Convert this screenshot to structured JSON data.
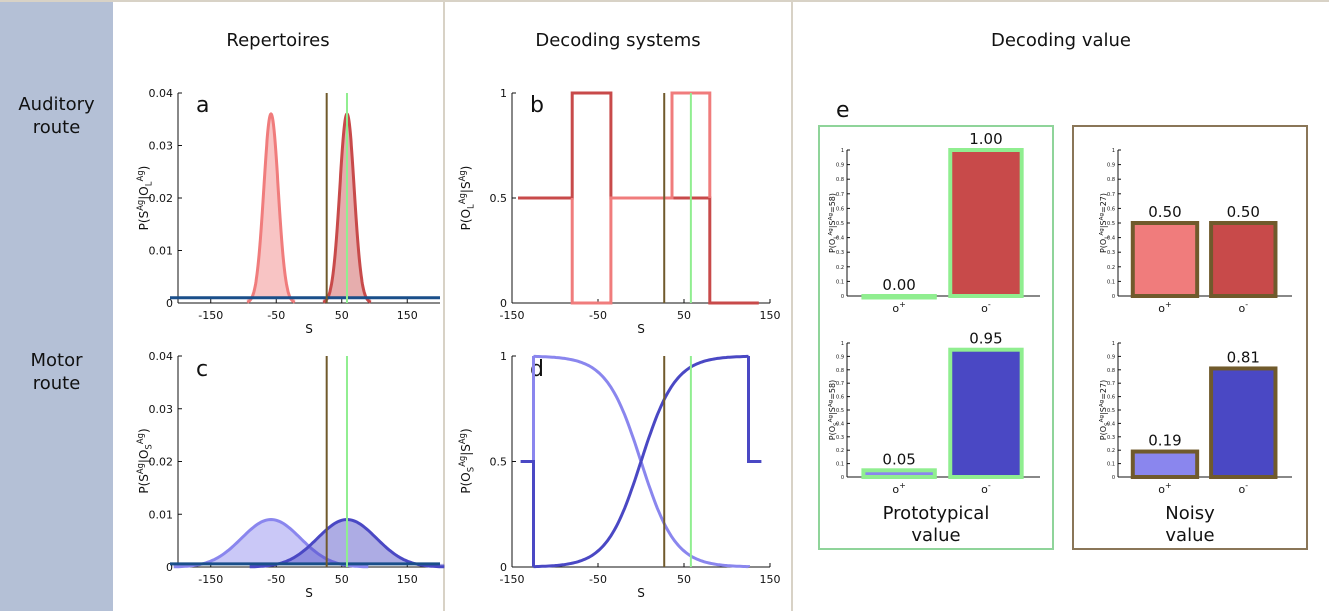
{
  "row_labels": {
    "auditory": [
      "Auditory",
      "route"
    ],
    "motor": [
      "Motor",
      "route"
    ]
  },
  "column_headers": {
    "repertoires": "Repertoires",
    "decoding": "Decoding systems",
    "value": "Decoding value"
  },
  "boxes": {
    "prototypical": [
      "Prototypical",
      "value"
    ],
    "noisy": [
      "Noisy",
      "value"
    ]
  },
  "colors": {
    "light_red": "#f07c7c",
    "dark_red": "#c84a4a",
    "light_blue": "#8a86ee",
    "dark_blue": "#4a48c4",
    "green_marker": "#90ee90",
    "brown_marker": "#705a2c",
    "baseline": "#1a4f8a"
  },
  "chart_data": [
    {
      "panel": "a",
      "type": "area",
      "ylabel": "P(S^Ag|O_L^Ag)",
      "xlabel": "S",
      "xlim": [
        -200,
        200
      ],
      "ylim": [
        0,
        0.04
      ],
      "xticks": [
        "-150",
        "-50",
        "50",
        "150"
      ],
      "yticks": [
        "0",
        "0.01",
        "0.02",
        "0.03",
        "0.04"
      ],
      "series": [
        {
          "color": "light_red",
          "mean": -58,
          "sd": 11,
          "peak": 0.036
        },
        {
          "color": "dark_red",
          "mean": 58,
          "sd": 11,
          "peak": 0.036
        }
      ],
      "baseline": 0.001,
      "markers": {
        "brown": 27,
        "green": 58
      }
    },
    {
      "panel": "b",
      "type": "line",
      "ylabel": "P(O_L^Ag|S^Ag)",
      "xlabel": "S",
      "xlim": [
        -150,
        150
      ],
      "ylim": [
        0,
        1
      ],
      "xticks": [
        "-150",
        "-50",
        "50",
        "150"
      ],
      "yticks": [
        "0",
        "0.5",
        "1"
      ],
      "series": [
        {
          "color": "dark_red",
          "x": [
            -143,
            -80,
            -80,
            -35,
            -35,
            80,
            80,
            137
          ],
          "y": [
            0.5,
            0.5,
            1,
            1,
            0.5,
            0.5,
            0,
            0
          ]
        },
        {
          "color": "light_red",
          "x": [
            -80,
            -80,
            -35,
            -35,
            36,
            36,
            80,
            80
          ],
          "y": [
            0.5,
            0,
            0,
            0.5,
            0.5,
            1,
            1,
            0.5
          ]
        }
      ],
      "markers": {
        "brown": 27,
        "green": 58
      }
    },
    {
      "panel": "c",
      "type": "area",
      "ylabel": "P(S^Ag|O_S^Ag)",
      "xlabel": "S",
      "xlim": [
        -200,
        200
      ],
      "ylim": [
        0,
        0.04
      ],
      "xticks": [
        "-150",
        "-50",
        "50",
        "150"
      ],
      "yticks": [
        "0",
        "0.01",
        "0.02",
        "0.03",
        "0.04"
      ],
      "series": [
        {
          "color": "light_blue",
          "mean": -58,
          "sd": 45,
          "peak": 0.009
        },
        {
          "color": "dark_blue",
          "mean": 58,
          "sd": 45,
          "peak": 0.009
        }
      ],
      "baseline": 0.0006,
      "markers": {
        "brown": 27,
        "green": 58
      }
    },
    {
      "panel": "d",
      "type": "line",
      "ylabel": "P(O_S^Ag|S^Ag)",
      "xlabel": "S",
      "xlim": [
        -150,
        150
      ],
      "ylim": [
        0,
        1
      ],
      "xticks": [
        "-150",
        "-50",
        "50",
        "150"
      ],
      "yticks": [
        "0",
        "0.5",
        "1"
      ],
      "logistic": {
        "center": 0,
        "scale": 20,
        "range": [
          -125,
          125
        ]
      },
      "markers": {
        "brown": 27,
        "green": 58
      }
    },
    {
      "panel": "e",
      "type": "bar",
      "box": "prototypical",
      "ylabel": "P(O_L^Ag|S^Ag=58)",
      "categories": [
        "o+",
        "o-"
      ],
      "values": [
        0.0,
        1.0
      ],
      "labels": [
        "0.00",
        "1.00"
      ],
      "colors": [
        "light_red",
        "dark_red"
      ],
      "ylim": [
        0,
        1
      ]
    },
    {
      "box": "prototypical",
      "type": "bar",
      "ylabel": "P(O_S^Ag|S^Ag=58)",
      "categories": [
        "o+",
        "o-"
      ],
      "values": [
        0.05,
        0.95
      ],
      "labels": [
        "0.05",
        "0.95"
      ],
      "colors": [
        "light_blue",
        "dark_blue"
      ],
      "ylim": [
        0,
        1
      ]
    },
    {
      "box": "noisy",
      "type": "bar",
      "ylabel": "P(O_L^Ag|S^Ag=27)",
      "categories": [
        "o+",
        "o-"
      ],
      "values": [
        0.5,
        0.5
      ],
      "labels": [
        "0.50",
        "0.50"
      ],
      "colors": [
        "light_red",
        "dark_red"
      ],
      "ylim": [
        0,
        1
      ]
    },
    {
      "box": "noisy",
      "type": "bar",
      "ylabel": "P(O_S^Ag|S^Ag=27)",
      "categories": [
        "o+",
        "o-"
      ],
      "values": [
        0.19,
        0.81
      ],
      "labels": [
        "0.19",
        "0.81"
      ],
      "colors": [
        "light_blue",
        "dark_blue"
      ],
      "ylim": [
        0,
        1
      ]
    }
  ]
}
